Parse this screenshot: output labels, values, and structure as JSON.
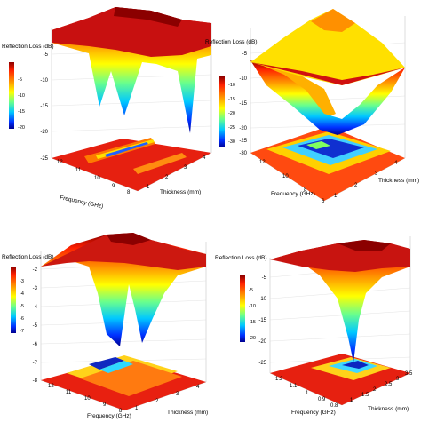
{
  "chart_data": [
    {
      "type": "surface",
      "zlabel": "Reflection Loss (dB)",
      "xlabel": "Frequency (GHz)",
      "ylabel": "Thickness (mm)",
      "x_ticks": [
        "12",
        "11",
        "10",
        "9",
        "8"
      ],
      "y_ticks": [
        "1",
        "2",
        "3",
        "4"
      ],
      "z_ticks": [
        "-5",
        "-10",
        "-15",
        "-20",
        "-25"
      ],
      "colorbar_ticks": [
        "-5",
        "-10",
        "-15",
        "-20"
      ],
      "zlim": [
        -25,
        0
      ],
      "minima": [
        {
          "frequency": 9.7,
          "thickness": 2.3,
          "rl": -19
        },
        {
          "frequency": 8.6,
          "thickness": 3.4,
          "rl": -20
        }
      ]
    },
    {
      "type": "surface",
      "zlabel": "Reflection Loss (dB)",
      "xlabel": "Frequency (GHz)",
      "ylabel": "Thickness (mm)",
      "x_ticks": [
        "12",
        "10",
        "8",
        "6"
      ],
      "y_ticks": [
        "1",
        "2",
        "3",
        "4"
      ],
      "z_ticks": [
        "-5",
        "-10",
        "-15",
        "-20",
        "-25",
        "-30"
      ],
      "colorbar_ticks": [
        "-10",
        "-15",
        "-20",
        "-25",
        "-30"
      ],
      "zlim": [
        -30,
        0
      ],
      "minima": [
        {
          "frequency": 9.5,
          "thickness": 2.5,
          "rl": -29
        }
      ]
    },
    {
      "type": "surface",
      "zlabel": "Reflection Loss (dB)",
      "xlabel": "Frequency (GHz)",
      "ylabel": "Thickness (mm)",
      "x_ticks": [
        "12",
        "11",
        "10",
        "9",
        "8"
      ],
      "y_ticks": [
        "1",
        "2",
        "3",
        "4"
      ],
      "z_ticks": [
        "-2",
        "-3",
        "-4",
        "-5",
        "-6",
        "-7",
        "-8"
      ],
      "colorbar_ticks": [
        "-3",
        "-4",
        "-5",
        "-6",
        "-7"
      ],
      "zlim": [
        -8,
        -1.5
      ],
      "minima": [
        {
          "frequency": 10.5,
          "thickness": 2.0,
          "rl": -7.2
        },
        {
          "frequency": 9.0,
          "thickness": 3.0,
          "rl": -7.4
        }
      ]
    },
    {
      "type": "surface",
      "zlabel": "Reflection Loss (dB)",
      "xlabel": "Frequency (GHz)",
      "ylabel": "Thickness (mm)",
      "x_ticks": [
        "1.2",
        "1.1",
        "1",
        "0.9",
        "0.8"
      ],
      "y_ticks": [
        "1",
        "1.5",
        "2",
        "2.5",
        "3",
        "3.5"
      ],
      "z_ticks": [
        "-5",
        "-10",
        "-15",
        "-20",
        "-25"
      ],
      "colorbar_ticks": [
        "-5",
        "-10",
        "-15",
        "-20"
      ],
      "zlim": [
        -25,
        0
      ],
      "minima": [
        {
          "frequency": 0.95,
          "thickness": 2.8,
          "rl": -22
        }
      ]
    }
  ]
}
